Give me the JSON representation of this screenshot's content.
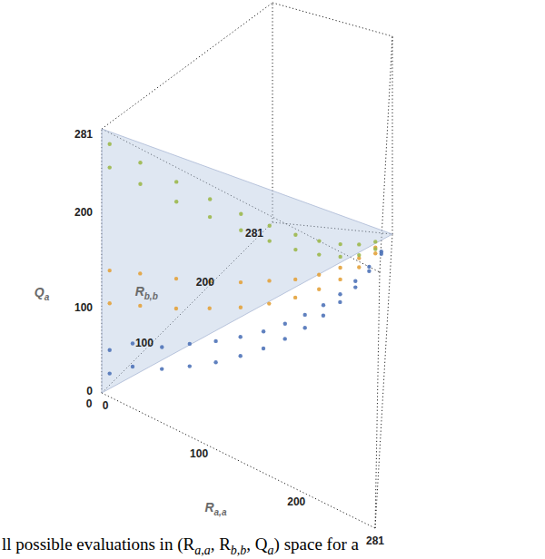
{
  "chart_data": {
    "type": "scatter3d",
    "xlabel": [
      "R",
      "a,a"
    ],
    "ylabel": [
      "R",
      "b,b"
    ],
    "zlabel": [
      "Q",
      "a"
    ],
    "xlim": [
      0,
      281
    ],
    "ylim": [
      0,
      281
    ],
    "zlim": [
      0,
      281
    ],
    "xticks": [
      0,
      100,
      200,
      281
    ],
    "yticks": [
      0,
      100,
      200,
      281
    ],
    "zticks": [
      0,
      100,
      200,
      281
    ],
    "plane": {
      "x": [
        0,
        0,
        281
      ],
      "y": [
        0,
        0,
        281
      ],
      "z": [
        0,
        281,
        0
      ],
      "color": "#b9c9e2"
    },
    "series": [
      {
        "color": "#4f73b8",
        "x": [
          5,
          5,
          20,
          20,
          40,
          40,
          60,
          60,
          80,
          80,
          100,
          100,
          120,
          120,
          140,
          140,
          160,
          160,
          180,
          180,
          200,
          200,
          220,
          220,
          240,
          240,
          260,
          260
        ],
        "y": [
          5,
          5,
          20,
          20,
          40,
          40,
          60,
          60,
          80,
          80,
          100,
          100,
          120,
          120,
          140,
          140,
          160,
          160,
          180,
          180,
          200,
          200,
          220,
          220,
          240,
          240,
          260,
          260
        ],
        "z": [
          45,
          20,
          50,
          25,
          42,
          18,
          40,
          15,
          36,
          12,
          32,
          10,
          28,
          8,
          25,
          7,
          22,
          6,
          18,
          5,
          14,
          4,
          11,
          3,
          8,
          2,
          4,
          1
        ]
      },
      {
        "color": "#e3a23c",
        "x": [
          5,
          5,
          25,
          25,
          50,
          50,
          75,
          75,
          100,
          100,
          125,
          125,
          150,
          150,
          175,
          175,
          200,
          200,
          225,
          225,
          250,
          250
        ],
        "y": [
          5,
          5,
          25,
          25,
          50,
          50,
          75,
          75,
          100,
          100,
          125,
          125,
          150,
          150,
          175,
          175,
          200,
          200,
          225,
          225,
          250,
          250
        ],
        "z": [
          130,
          95,
          125,
          90,
          115,
          82,
          105,
          75,
          95,
          66,
          85,
          58,
          72,
          50,
          60,
          42,
          48,
          33,
          36,
          24,
          22,
          14
        ]
      },
      {
        "color": "#9cb84c",
        "x": [
          5,
          5,
          25,
          25,
          50,
          50,
          75,
          75,
          100,
          100,
          125,
          125,
          150,
          150,
          175,
          175,
          200,
          200,
          225,
          225,
          250,
          250
        ],
        "y": [
          5,
          5,
          25,
          25,
          50,
          50,
          75,
          75,
          100,
          100,
          125,
          125,
          150,
          150,
          175,
          175,
          200,
          200,
          225,
          225,
          250,
          250
        ],
        "z": [
          265,
          240,
          245,
          222,
          222,
          200,
          198,
          178,
          174,
          155,
          150,
          132,
          126,
          108,
          102,
          85,
          78,
          62,
          54,
          40,
          30,
          20
        ]
      }
    ],
    "caption": [
      "ll possible evaluations in (R",
      "a,a",
      ", R",
      "b,b",
      ", Q",
      "a",
      ") space for a"
    ]
  }
}
